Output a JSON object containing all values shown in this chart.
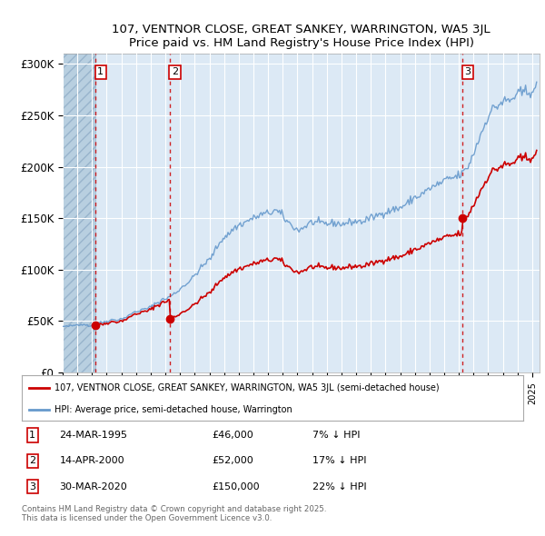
{
  "title": "107, VENTNOR CLOSE, GREAT SANKEY, WARRINGTON, WA5 3JL",
  "subtitle": "Price paid vs. HM Land Registry's House Price Index (HPI)",
  "ylim": [
    0,
    310000
  ],
  "xlim_start": 1993.0,
  "xlim_end": 2025.5,
  "yticks": [
    0,
    50000,
    100000,
    150000,
    200000,
    250000,
    300000
  ],
  "ytick_labels": [
    "£0",
    "£50K",
    "£100K",
    "£150K",
    "£200K",
    "£250K",
    "£300K"
  ],
  "purchases": [
    {
      "num": 1,
      "date": "24-MAR-1995",
      "price": 46000,
      "year": 1995.22,
      "hpi_pct": "7% ↓ HPI"
    },
    {
      "num": 2,
      "date": "14-APR-2000",
      "price": 52000,
      "year": 2000.29,
      "hpi_pct": "17% ↓ HPI"
    },
    {
      "num": 3,
      "date": "30-MAR-2020",
      "price": 150000,
      "year": 2020.25,
      "hpi_pct": "22% ↓ HPI"
    }
  ],
  "red_line_label": "107, VENTNOR CLOSE, GREAT SANKEY, WARRINGTON, WA5 3JL (semi-detached house)",
  "blue_line_label": "HPI: Average price, semi-detached house, Warrington",
  "footnote": "Contains HM Land Registry data © Crown copyright and database right 2025.\nThis data is licensed under the Open Government Licence v3.0.",
  "bg_color": "#dce9f5",
  "hatch_color": "#b8cfe0",
  "grid_color": "#ffffff",
  "red_color": "#cc0000",
  "blue_color": "#6699cc"
}
